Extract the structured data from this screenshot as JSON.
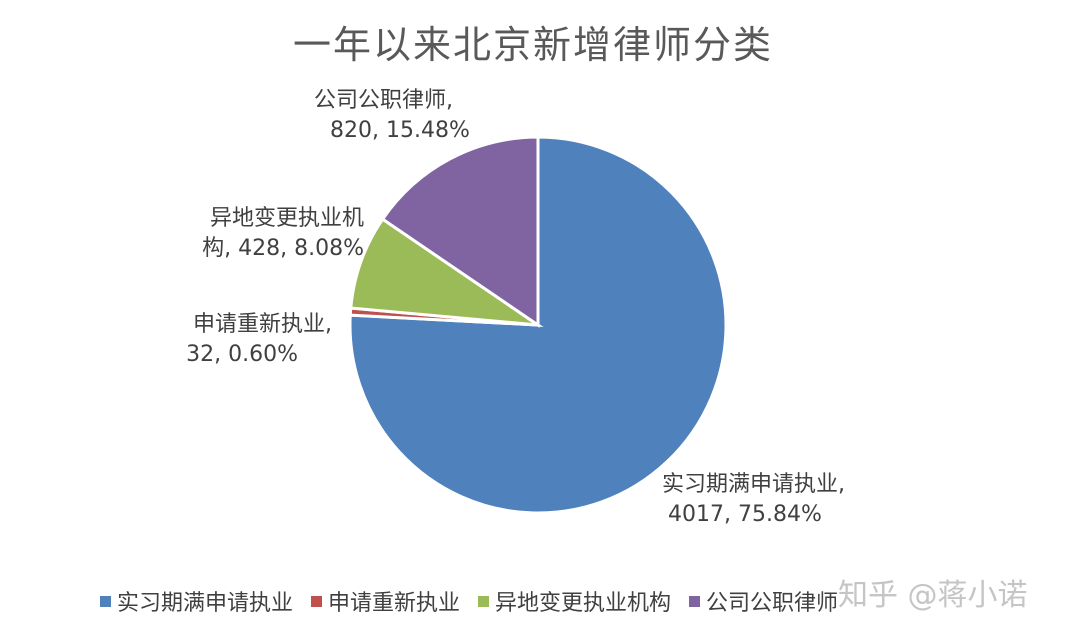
{
  "chart_data": {
    "type": "pie",
    "title": "一年以来北京新增律师分类",
    "slices": [
      {
        "name": "实习期满申请执业",
        "value": 4017,
        "percent": "75.84%",
        "label_line1": "实习期满申请执业,",
        "label_line2": "4017, 75.84%",
        "color": "#4F81BD"
      },
      {
        "name": "申请重新执业",
        "value": 32,
        "percent": "0.60%",
        "label_line1": "申请重新执业,",
        "label_line2": "32, 0.60%",
        "color": "#C0504D"
      },
      {
        "name": "异地变更执业机构",
        "value": 428,
        "percent": "8.08%",
        "label_line1": "异地变更执业机",
        "label_line2": "构, 428, 8.08%",
        "color": "#9BBB59"
      },
      {
        "name": "公司公职律师",
        "value": 820,
        "percent": "15.48%",
        "label_line1": "公司公职律师,",
        "label_line2": "820, 15.48%",
        "color": "#8064A2"
      }
    ],
    "legend": "bottom",
    "start": "12 o'clock, clockwise"
  },
  "watermark": "知乎 @蒋小诺"
}
